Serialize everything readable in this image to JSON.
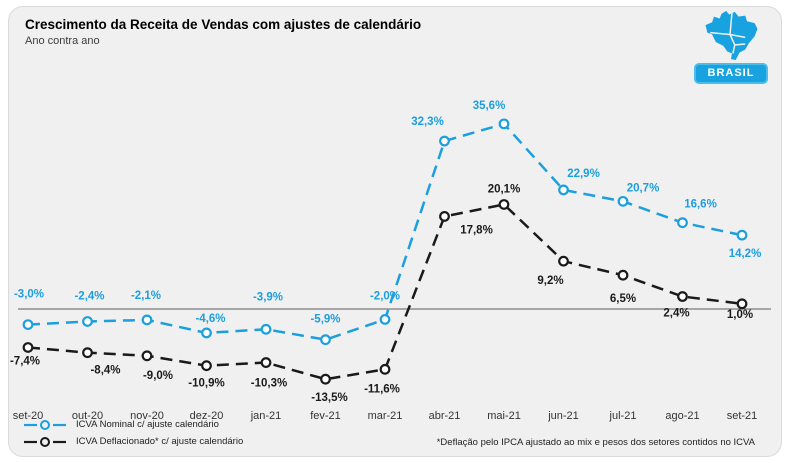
{
  "header": {
    "title": "Crescimento da Receita de Vendas com ajustes de calendário",
    "subtitle": "Ano contra ano"
  },
  "badge": {
    "label": "BRASIL"
  },
  "chart_data": {
    "type": "line",
    "title": "Crescimento da Receita de Vendas com ajustes de calendário",
    "subtitle": "Ano contra ano",
    "categories": [
      "set-20",
      "out-20",
      "nov-20",
      "dez-20",
      "jan-21",
      "fev-21",
      "mar-21",
      "abr-21",
      "mai-21",
      "jun-21",
      "jul-21",
      "ago-21",
      "set-21"
    ],
    "series": [
      {
        "name": "ICVA Nominal c/ ajuste calendário",
        "color": "#1B9FDE",
        "marker": "open-circle",
        "line_style": "dashed",
        "values": [
          -3.0,
          -2.4,
          -2.1,
          -4.6,
          -3.9,
          -5.9,
          -2.0,
          32.3,
          35.6,
          22.9,
          20.7,
          16.6,
          14.2
        ],
        "labels": [
          "-3,0%",
          "-2,4%",
          "-2,1%",
          "-4,6%",
          "-3,9%",
          "-5,9%",
          "-2,0%",
          "32,3%",
          "35,6%",
          "22,9%",
          "20,7%",
          "16,6%",
          "14,2%"
        ],
        "label_offsets": [
          [
            1,
            -27
          ],
          [
            2,
            -22
          ],
          [
            -1,
            -21
          ],
          [
            4,
            -11
          ],
          [
            2,
            -29
          ],
          [
            0,
            -17
          ],
          [
            0,
            -20
          ],
          [
            -17,
            -16
          ],
          [
            -15,
            -15
          ],
          [
            20,
            -13
          ],
          [
            20,
            -10
          ],
          [
            18,
            -15
          ],
          [
            3,
            22
          ]
        ]
      },
      {
        "name": "ICVA Deflacionado* c/ ajuste calendário",
        "color": "#1A1A1A",
        "marker": "open-circle",
        "line_style": "dashed",
        "values": [
          -7.4,
          -8.4,
          -9.0,
          -10.9,
          -10.3,
          -13.5,
          -11.6,
          17.8,
          20.1,
          9.2,
          6.5,
          2.4,
          1.0
        ],
        "labels": [
          "-7,4%",
          "-8,4%",
          "-9,0%",
          "-10,9%",
          "-10,3%",
          "-13,5%",
          "-11,6%",
          "17,8%",
          "20,1%",
          "9,2%",
          "6,5%",
          "2,4%",
          "1,0%"
        ],
        "label_offsets": [
          [
            -3,
            17
          ],
          [
            18,
            21
          ],
          [
            11,
            23
          ],
          [
            0,
            21
          ],
          [
            3,
            24
          ],
          [
            4,
            22
          ],
          [
            -3,
            23
          ],
          [
            32,
            17
          ],
          [
            0,
            -12
          ],
          [
            -13,
            23
          ],
          [
            0,
            27
          ],
          [
            -6,
            20
          ],
          [
            -2,
            14
          ]
        ]
      }
    ],
    "ylim": [
      -18,
      42
    ],
    "zero_line": true,
    "grid": false,
    "legend_position": "bottom-left",
    "footnote": "*Deflação pelo IPCA ajustado ao mix e pesos dos setores contidos no ICVA"
  }
}
